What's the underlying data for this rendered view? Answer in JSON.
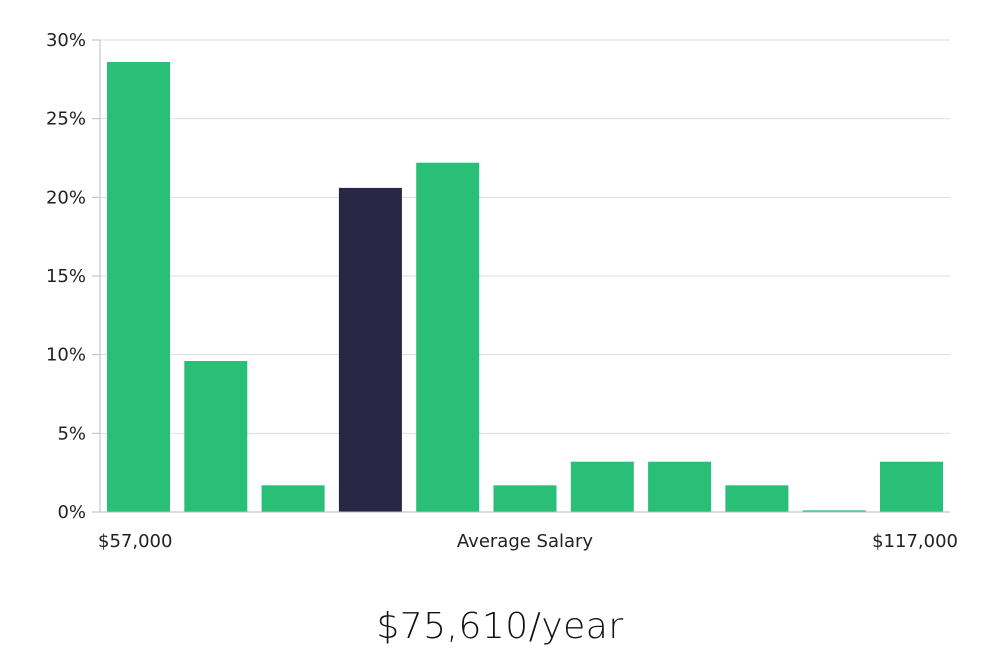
{
  "colors": {
    "bar": "#2abf76",
    "highlight_bar": "#292646",
    "grid": "#dddddd",
    "axis": "#bbbbbb",
    "text": "#222222"
  },
  "salary_text": "$75,610/year",
  "chart_data": {
    "type": "bar",
    "xlabel_left": "$57,000",
    "xlabel_center": "Average Salary",
    "xlabel_right": "$117,000",
    "y_ticks": [
      "0%",
      "5%",
      "10%",
      "15%",
      "20%",
      "25%",
      "30%"
    ],
    "ylim": [
      0,
      30
    ],
    "grid": true,
    "values": [
      28.6,
      9.6,
      1.7,
      20.6,
      22.2,
      1.7,
      3.2,
      3.2,
      1.7,
      0.1,
      3.2
    ],
    "highlight_index": 3
  }
}
